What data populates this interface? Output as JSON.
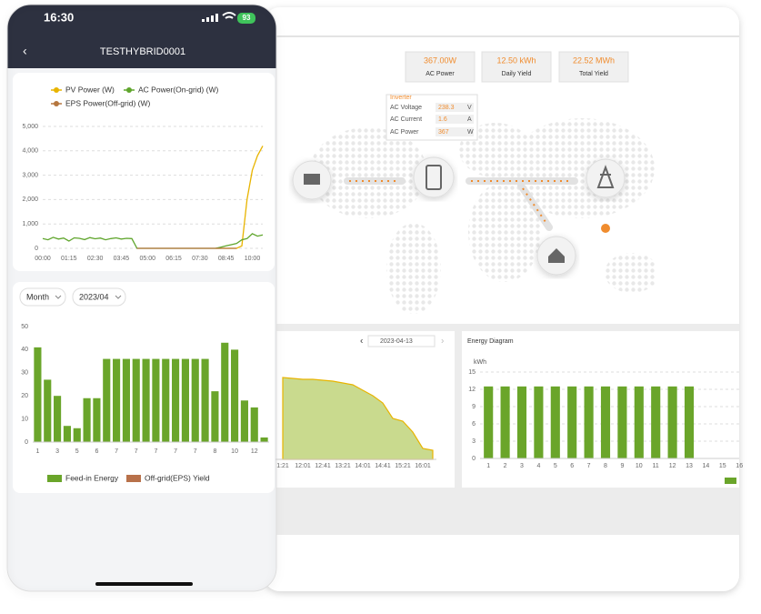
{
  "phone": {
    "time": "16:30",
    "battery": "93",
    "title": "TESTHYBRID0001",
    "period": "Month",
    "month": "2023/04"
  },
  "dashboard": {
    "summary": [
      {
        "value": "367.00W",
        "label": "AC Power"
      },
      {
        "value": "12.50 kWh",
        "label": "Daily Yield"
      },
      {
        "value": "22.52 MWh",
        "label": "Total Yield"
      }
    ],
    "inverter": {
      "title": "Inverter",
      "rows": [
        {
          "label": "AC Voltage",
          "value": 238.3,
          "unit": "V"
        },
        {
          "label": "AC Current",
          "value": 1.6,
          "unit": "A"
        },
        {
          "label": "AC Power",
          "value": 367,
          "unit": "W"
        }
      ]
    },
    "date": "2023-04-13"
  },
  "chart_data": [
    {
      "type": "line",
      "legend": "top",
      "grid": true,
      "categories": [
        "00:00",
        null,
        null,
        null,
        null,
        "01:15",
        null,
        null,
        null,
        null,
        "02:30",
        null,
        null,
        null,
        null,
        "03:45",
        null,
        null,
        null,
        null,
        "05:00",
        null,
        null,
        null,
        null,
        "06:15",
        null,
        null,
        null,
        null,
        "07:30",
        null,
        null,
        null,
        null,
        "08:45",
        null,
        null,
        null,
        null,
        "10:00",
        null,
        null
      ],
      "series": [
        {
          "name": "PV Power (W)",
          "color": "#e8b400",
          "values": [
            null,
            null,
            null,
            null,
            null,
            null,
            null,
            null,
            null,
            null,
            null,
            null,
            null,
            null,
            null,
            null,
            null,
            null,
            null,
            null,
            null,
            null,
            null,
            null,
            null,
            null,
            null,
            null,
            null,
            null,
            null,
            null,
            null,
            0,
            0,
            0,
            0,
            0,
            100,
            2000,
            3200,
            3800,
            4200
          ]
        },
        {
          "name": "AC Power(On-grid) (W)",
          "color": "#5fa52c",
          "values": [
            400,
            350,
            450,
            380,
            420,
            300,
            430,
            410,
            360,
            440,
            390,
            420,
            350,
            400,
            430,
            380,
            410,
            400,
            0,
            0,
            0,
            0,
            0,
            0,
            0,
            0,
            0,
            0,
            0,
            0,
            0,
            0,
            0,
            0,
            50,
            100,
            150,
            200,
            350,
            400,
            600,
            500,
            550
          ]
        },
        {
          "name": "EPS Power(Off-grid) (W)",
          "color": "#b5763f",
          "values": [
            null,
            null,
            null,
            null,
            null,
            null,
            null,
            null,
            null,
            null,
            null,
            null,
            null,
            null,
            null,
            null,
            null,
            null,
            0,
            0,
            0,
            0,
            0,
            0,
            0,
            0,
            0,
            0,
            0,
            0,
            0,
            0,
            0,
            0,
            0,
            0,
            0,
            0,
            null,
            null,
            null,
            null,
            null
          ]
        }
      ],
      "ylim": [
        0,
        5000
      ],
      "yticks": [
        0,
        {
          "value": 1000,
          "label": "1,000"
        },
        {
          "value": 2000,
          "label": "2,000"
        },
        {
          "value": 3000,
          "label": "3,000"
        },
        {
          "value": 4000,
          "label": "4,000"
        },
        {
          "value": 5000,
          "label": "5,000"
        }
      ]
    },
    {
      "type": "bar",
      "legend": "bottom",
      "grid": false,
      "categories": [
        "1",
        null,
        "3",
        null,
        "5",
        null,
        "6",
        null,
        "7",
        null,
        "7",
        null,
        "7",
        null,
        "7",
        null,
        "7",
        null,
        "8",
        null,
        "10",
        null,
        "12",
        null
      ],
      "series": [
        {
          "name": "Feed-in Energy",
          "color": "#6aa52a",
          "values": [
            41,
            27,
            20,
            7,
            6,
            19,
            19,
            36,
            36,
            36,
            36,
            36,
            36,
            36,
            36,
            36,
            36,
            36,
            22,
            43,
            40,
            18,
            15,
            2
          ]
        },
        {
          "name": "Off-grid(EPS) Yield",
          "color": "#b8714a",
          "values": [
            0,
            0,
            0,
            0,
            0,
            0,
            0,
            0,
            0,
            0,
            0,
            0,
            0,
            0,
            0,
            0,
            0,
            0,
            0,
            0,
            0,
            0,
            0,
            0
          ]
        }
      ],
      "ylim": [
        0,
        50
      ],
      "yticks": [
        0,
        10,
        20,
        30,
        40,
        50
      ]
    },
    {
      "type": "area",
      "color": "#c9da8e",
      "line_color": "#e8b400",
      "categories": [
        "1:21",
        null,
        "12:01",
        null,
        "12:41",
        null,
        "13:21",
        null,
        "14:01",
        null,
        "14:41",
        null,
        "15:21",
        null,
        "16:01",
        null
      ],
      "values": [
        90,
        89,
        88,
        88,
        87,
        86,
        84,
        82,
        76,
        70,
        62,
        45,
        42,
        30,
        12,
        10
      ]
    },
    {
      "type": "bar",
      "title": "Energy Diagram",
      "y_label": "kWh",
      "color": "#6aa52a",
      "grid": true,
      "categories": [
        "1",
        "2",
        "3",
        "4",
        "5",
        "6",
        "7",
        "8",
        "9",
        "10",
        "11",
        "12",
        "13",
        "14",
        "15",
        "16"
      ],
      "values": [
        12.5,
        12.5,
        12.5,
        12.5,
        12.5,
        12.5,
        12.5,
        12.5,
        12.5,
        12.5,
        12.5,
        12.5,
        12.5,
        null,
        null,
        null
      ],
      "ylim": [
        0,
        15
      ],
      "yticks": [
        0,
        3,
        6,
        9,
        12,
        15
      ]
    }
  ]
}
